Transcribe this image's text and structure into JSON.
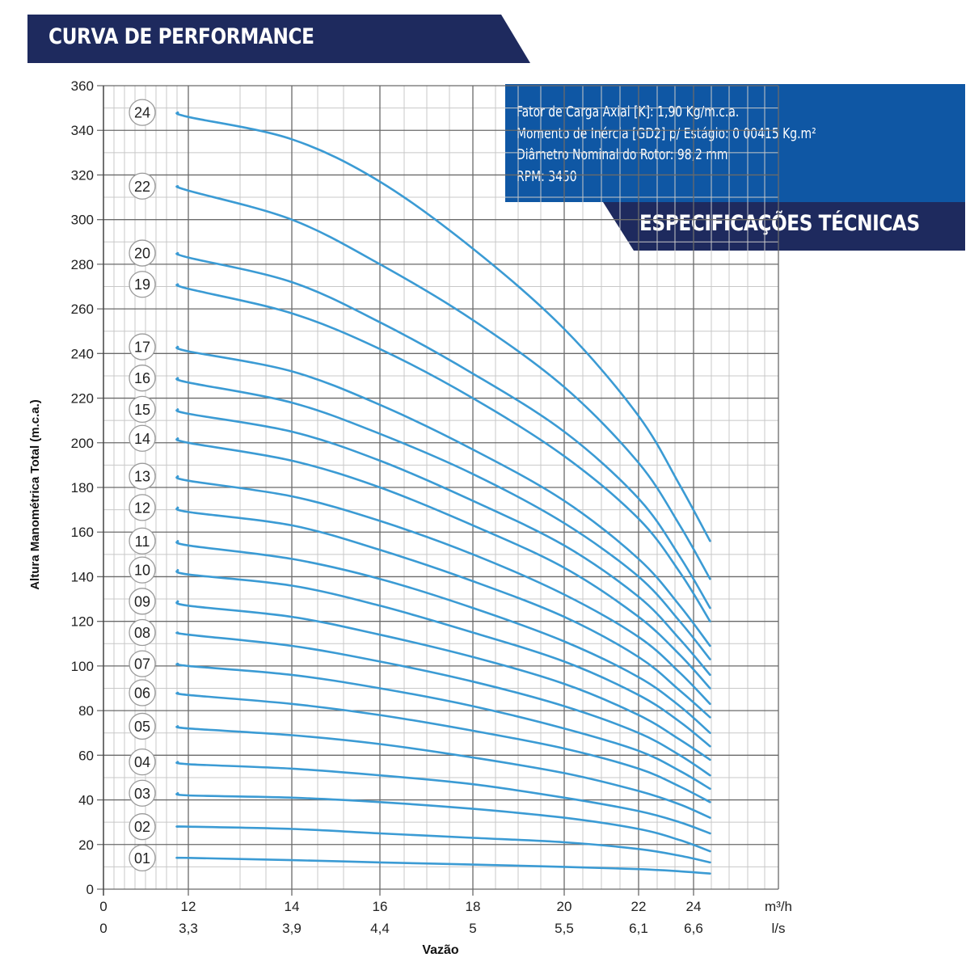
{
  "header": {
    "title": "CURVA DE PERFORMANCE"
  },
  "specs": {
    "heading": "ESPECIFICAÇÕES TÉCNICAS",
    "lines": [
      "Fator de Carga Axial [K]: 1,90 Kg/m.c.a.",
      "Momento de Inércia [GD2] p/ Estágio: 0 00415 Kg.m²",
      "Diâmetro Nominal do Rotor: 98,2 mm",
      "RPM: 3450"
    ]
  },
  "colors": {
    "banner": "#1e2a5e",
    "spec_box": "#0f57a4",
    "curve": "#3b9bd4",
    "grid_major": "#6a6a6a",
    "grid_minor": "#c8c8c8"
  },
  "chart_data": {
    "type": "line",
    "title": "",
    "ylabel": "Altura Manométrica Total (m.c.a.)",
    "xlabel": "Vazão",
    "ylim": [
      0,
      360
    ],
    "yticks": [
      0,
      20,
      40,
      60,
      80,
      100,
      120,
      140,
      160,
      180,
      200,
      220,
      240,
      260,
      280,
      300,
      320,
      340,
      360
    ],
    "x_axis_rows": [
      {
        "unit": "m³/h",
        "ticks": [
          {
            "x": 0,
            "label": "0"
          },
          {
            "x": 12,
            "label": "12"
          },
          {
            "x": 14,
            "label": "14"
          },
          {
            "x": 16,
            "label": "16"
          },
          {
            "x": 18,
            "label": "18"
          },
          {
            "x": 20,
            "label": "20"
          },
          {
            "x": 22,
            "label": "22"
          },
          {
            "x": 24,
            "label": "24"
          }
        ]
      },
      {
        "unit": "l/s",
        "ticks": [
          {
            "x": 0,
            "label": "0"
          },
          {
            "x": 12,
            "label": "3,3"
          },
          {
            "x": 14,
            "label": "3,9"
          },
          {
            "x": 16,
            "label": "4,4"
          },
          {
            "x": 18,
            "label": "5"
          },
          {
            "x": 20,
            "label": "5,5"
          },
          {
            "x": 22,
            "label": "6,1"
          },
          {
            "x": 24,
            "label": "6,6"
          }
        ]
      }
    ],
    "x_units": "m³/h",
    "x": [
      10.5,
      12,
      14,
      16,
      18,
      20,
      22,
      23.5,
      24.6
    ],
    "series": [
      {
        "name": "24",
        "values": [
          348,
          346,
          336,
          317,
          287,
          251,
          212,
          181,
          156
        ]
      },
      {
        "name": "22",
        "values": [
          315,
          313,
          300,
          280,
          255,
          225,
          191,
          163,
          139
        ]
      },
      {
        "name": "20",
        "values": [
          285,
          283,
          272,
          254,
          231,
          205,
          175,
          149,
          126
        ]
      },
      {
        "name": "19",
        "values": [
          271,
          269,
          258,
          242,
          220,
          194,
          166,
          142,
          120
        ]
      },
      {
        "name": "17",
        "values": [
          243,
          241,
          232,
          217,
          197,
          174,
          148,
          127,
          109
        ]
      },
      {
        "name": "16",
        "values": [
          229,
          227,
          218,
          204,
          186,
          164,
          140,
          120,
          103
        ]
      },
      {
        "name": "15",
        "values": [
          215,
          213,
          205,
          192,
          174,
          154,
          131,
          112,
          96
        ]
      },
      {
        "name": "14",
        "values": [
          202,
          200,
          192,
          180,
          163,
          144,
          122,
          105,
          90
        ]
      },
      {
        "name": "13",
        "values": [
          185,
          183,
          176,
          165,
          150,
          132,
          113,
          97,
          83
        ]
      },
      {
        "name": "12",
        "values": [
          171,
          169,
          163,
          152,
          138,
          122,
          104,
          89,
          77
        ]
      },
      {
        "name": "11",
        "values": [
          156,
          154,
          148,
          139,
          126,
          111,
          95,
          82,
          70
        ]
      },
      {
        "name": "10",
        "values": [
          143,
          141,
          136,
          127,
          115,
          102,
          87,
          75,
          64
        ]
      },
      {
        "name": "09",
        "values": [
          129,
          127,
          122,
          114,
          104,
          92,
          78,
          67,
          58
        ]
      },
      {
        "name": "08",
        "values": [
          115,
          114,
          109,
          102,
          93,
          82,
          70,
          60,
          51
        ]
      },
      {
        "name": "07",
        "values": [
          101,
          100,
          96,
          90,
          82,
          72,
          62,
          53,
          45
        ]
      },
      {
        "name": "06",
        "values": [
          88,
          87,
          83,
          78,
          71,
          63,
          54,
          46,
          39
        ]
      },
      {
        "name": "05",
        "values": [
          73,
          72,
          69,
          65,
          59,
          52,
          44,
          38,
          32
        ]
      },
      {
        "name": "04",
        "values": [
          57,
          56,
          54,
          51,
          47,
          41,
          35,
          30,
          25
        ]
      },
      {
        "name": "03",
        "values": [
          43,
          42,
          41,
          39,
          36,
          32,
          27,
          22,
          17
        ]
      },
      {
        "name": "02",
        "values": [
          28,
          28,
          27,
          25,
          23,
          21,
          18,
          15,
          12
        ]
      },
      {
        "name": "01",
        "values": [
          14,
          14,
          13,
          12,
          11,
          10,
          9,
          8,
          7
        ]
      }
    ],
    "grid": true,
    "legend": "curve labels at left"
  }
}
